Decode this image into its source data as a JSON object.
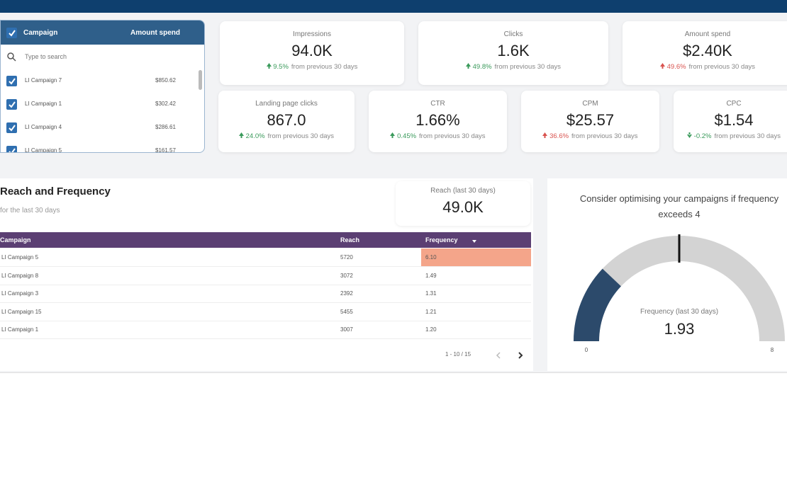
{
  "filter": {
    "columns": [
      "Campaign",
      "Amount spend"
    ],
    "search_placeholder": "Type to search",
    "items": [
      {
        "label": "LI Campaign 7",
        "amount": "$850.62",
        "checked": true
      },
      {
        "label": "LI Campaign 1",
        "amount": "$302.42",
        "checked": true
      },
      {
        "label": "LI Campaign 4",
        "amount": "$286.61",
        "checked": true
      },
      {
        "label": "LI Campaign 5",
        "amount": "$161.57",
        "checked": true
      }
    ]
  },
  "kpis": [
    {
      "label": "Impressions",
      "value": "94.0K",
      "change": "9.5%",
      "direction": "up",
      "color": "#3a9a5b",
      "note": "from previous 30 days"
    },
    {
      "label": "Clicks",
      "value": "1.6K",
      "change": "49.8%",
      "direction": "up",
      "color": "#3a9a5b",
      "note": "from previous 30 days"
    },
    {
      "label": "Amount spend",
      "value": "$2.40K",
      "change": "49.6%",
      "direction": "up",
      "color": "#d9534f",
      "note": "from previous 30 days"
    },
    {
      "label": "Landing page clicks",
      "value": "867.0",
      "change": "24.0%",
      "direction": "up",
      "color": "#3a9a5b",
      "note": "from previous 30 days"
    },
    {
      "label": "CTR",
      "value": "1.66%",
      "change": "0.45%",
      "direction": "up",
      "color": "#3a9a5b",
      "note": "from previous 30 days"
    },
    {
      "label": "CPM",
      "value": "$25.57",
      "change": "36.6%",
      "direction": "up",
      "color": "#d9534f",
      "note": "from previous 30 days"
    },
    {
      "label": "CPC",
      "value": "$1.54",
      "change": "-0.2%",
      "direction": "down",
      "color": "#3a9a5b",
      "note": "from previous 30 days"
    }
  ],
  "reach_frequency": {
    "title": "Reach and Frequency",
    "subtitle": "for the last 30 days",
    "scorecard": {
      "label": "Reach (last 30 days)",
      "value": "49.0K"
    },
    "table": {
      "columns": [
        "Campaign",
        "Reach",
        "Frequency"
      ],
      "sorted_column": "Frequency",
      "highlight_color": "#f4a58a",
      "rows": [
        {
          "cells": [
            "LI Campaign 5",
            "5720",
            "6.10"
          ],
          "highlight": true
        },
        {
          "cells": [
            "LI Campaign 8",
            "3072",
            "1.49"
          ],
          "highlight": false
        },
        {
          "cells": [
            "LI Campaign 3",
            "2392",
            "1.31"
          ],
          "highlight": false
        },
        {
          "cells": [
            "LI Campaign 15",
            "5455",
            "1.21"
          ],
          "highlight": false
        },
        {
          "cells": [
            "LI Campaign 1",
            "3007",
            "1.20"
          ],
          "highlight": false
        }
      ],
      "pagination": "1 - 10 / 15"
    }
  },
  "gauge": {
    "title": "Consider optimising your campaigns if frequency exceeds 4",
    "label": "Frequency (last 30 days)",
    "value": 1.93,
    "min": 0,
    "max": 8,
    "target": 4,
    "fill_color": "#2c4a6b",
    "track_color": "#d3d3d3"
  }
}
